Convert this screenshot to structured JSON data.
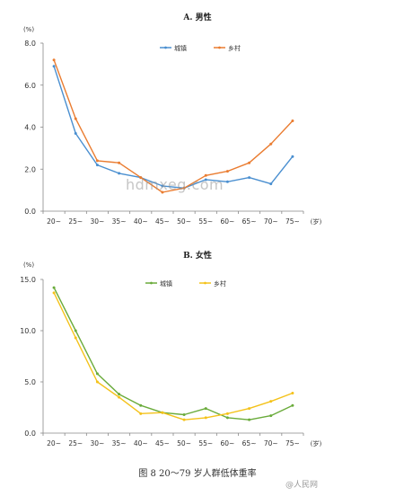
{
  "chart_data": [
    {
      "type": "line",
      "title": "A. 男性",
      "yunit": "(%)",
      "xunit": "(岁)",
      "categories": [
        "20~",
        "25~",
        "30~",
        "35~",
        "40~",
        "45~",
        "50~",
        "55~",
        "60~",
        "65~",
        "70~",
        "75~"
      ],
      "ylim": [
        0,
        8
      ],
      "yticks": [
        "0.0",
        "2.0",
        "4.0",
        "6.0",
        "8.0"
      ],
      "ytick_values": [
        0,
        2,
        4,
        6,
        8
      ],
      "legend_position": "top-center",
      "series": [
        {
          "name": "城镇",
          "color": "#4a8fd0",
          "values": [
            6.9,
            3.7,
            2.2,
            1.8,
            1.6,
            1.2,
            1.1,
            1.5,
            1.4,
            1.6,
            1.3,
            2.6
          ]
        },
        {
          "name": "乡村",
          "color": "#ea7c30",
          "values": [
            7.2,
            4.4,
            2.4,
            2.3,
            1.6,
            0.9,
            1.1,
            1.7,
            1.9,
            2.3,
            3.2,
            4.3
          ]
        }
      ]
    },
    {
      "type": "line",
      "title": "B. 女性",
      "yunit": "(%)",
      "xunit": "(岁)",
      "categories": [
        "20~",
        "25~",
        "30~",
        "35~",
        "40~",
        "45~",
        "50~",
        "55~",
        "60~",
        "65~",
        "70~",
        "75~"
      ],
      "ylim": [
        0,
        15
      ],
      "yticks": [
        "0.0",
        "5.0",
        "10.0",
        "15.0"
      ],
      "ytick_values": [
        0,
        5,
        10,
        15
      ],
      "legend_position": "top-center",
      "series": [
        {
          "name": "城镇",
          "color": "#6aab3b",
          "values": [
            14.2,
            10.0,
            5.8,
            3.8,
            2.7,
            2.0,
            1.8,
            2.4,
            1.5,
            1.3,
            1.7,
            2.7
          ]
        },
        {
          "name": "乡村",
          "color": "#f4c21a",
          "values": [
            13.7,
            9.3,
            5.0,
            3.5,
            1.9,
            2.0,
            1.3,
            1.5,
            1.9,
            2.4,
            3.1,
            3.9
          ]
        }
      ]
    }
  ],
  "caption": "图 8    20～79 岁人群低体重率",
  "watermark": "hdmxeg.com",
  "weibo_mark": "@人民网"
}
